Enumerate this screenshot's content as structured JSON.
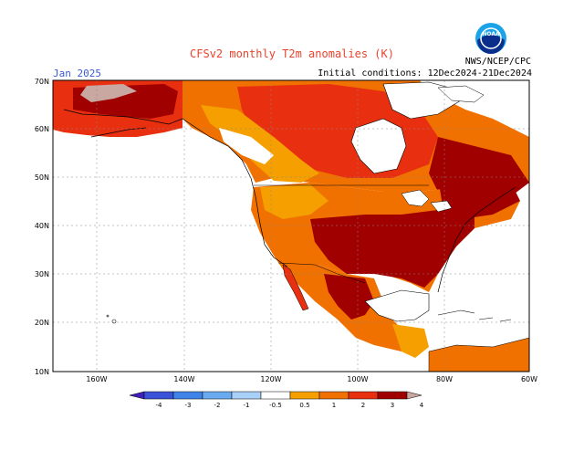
{
  "header": {
    "title": "CFSv2 monthly T2m anomalies (K)",
    "month": "Jan 2025",
    "agency": "NWS/NCEP/CPC",
    "initial_conditions": "Initial conditions: 12Dec2024-21Dec2024",
    "logo_text": "NOAA"
  },
  "map": {
    "lat_labels": [
      "70N",
      "60N",
      "50N",
      "40N",
      "30N",
      "20N",
      "10N"
    ],
    "lon_labels": [
      "160W",
      "140W",
      "120W",
      "100W",
      "80W",
      "60W"
    ],
    "ocean_color": "#ffffff",
    "land_outline_color": "#000000"
  },
  "colorbar": {
    "labels": [
      "-4",
      "-3",
      "-2",
      "-1",
      "-0.5",
      "0.5",
      "1",
      "2",
      "3",
      "4"
    ],
    "colors": [
      "#4020b8",
      "#3a52d8",
      "#3f82e8",
      "#6aaaf0",
      "#a8d0f8",
      "#ffffff",
      "#f5a000",
      "#f07000",
      "#e83010",
      "#a00000",
      "#c8a8a0"
    ]
  }
}
